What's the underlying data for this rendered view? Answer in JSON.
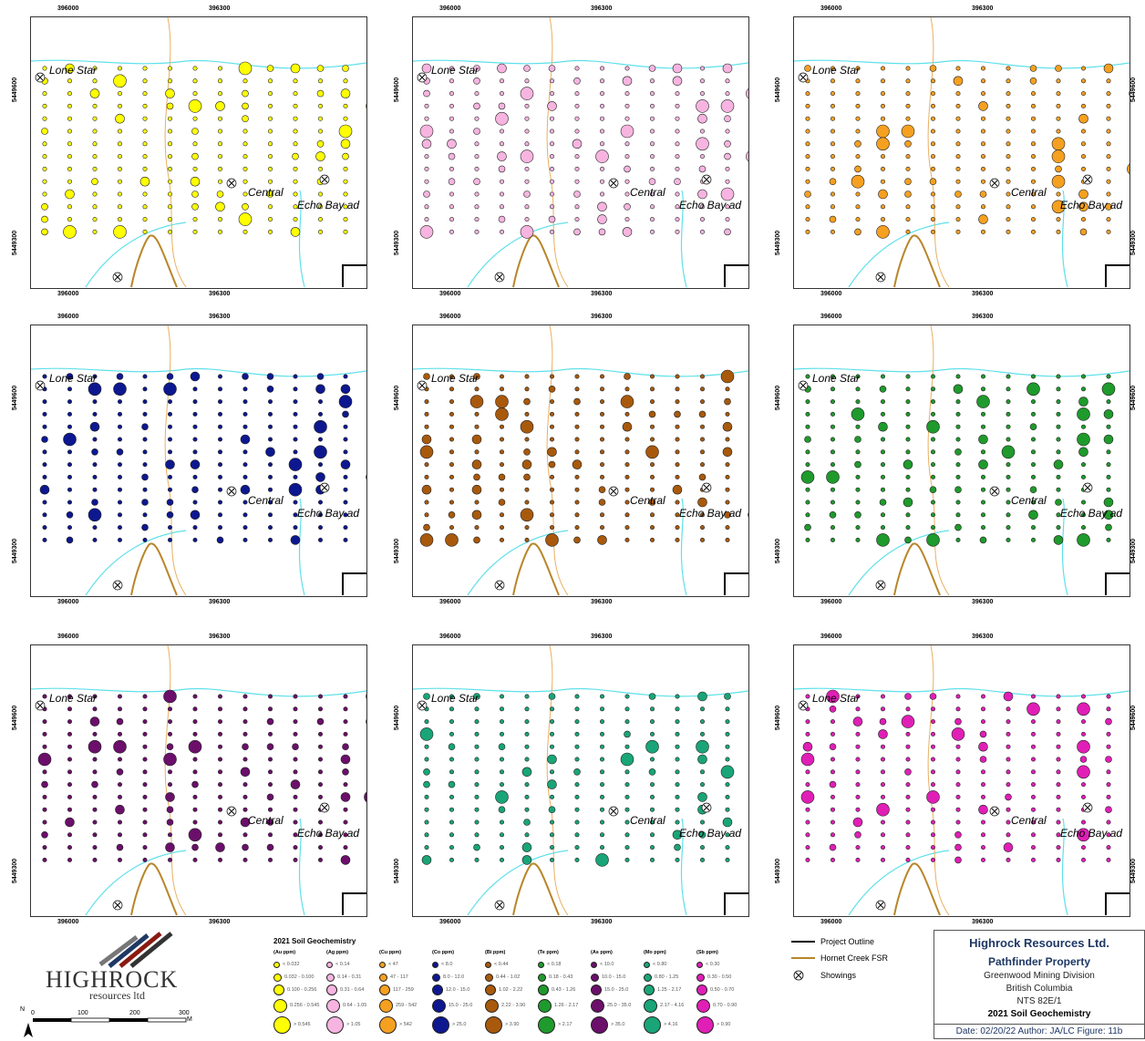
{
  "panels": [
    {
      "element": "Au",
      "title": "Au (ppm)",
      "color": "#ffff00",
      "dark": false
    },
    {
      "element": "Ag",
      "title": "Ag (ppm)",
      "color": "#f7b4e0",
      "dark": false
    },
    {
      "element": "Cu",
      "title": "Cu (ppm)",
      "color": "#f5a020",
      "dark": false
    },
    {
      "element": "Co",
      "title": "Co (ppm)",
      "color": "#0d1890",
      "dark": true
    },
    {
      "element": "Bi",
      "title": "Bi (ppm)",
      "color": "#a8590c",
      "dark": true
    },
    {
      "element": "Te",
      "title": "Te (ppm)",
      "color": "#1f9a2c",
      "dark": true
    },
    {
      "element": "As",
      "title": "As (ppm)",
      "color": "#6b0f6b",
      "dark": true
    },
    {
      "element": "Mo",
      "title": "Mo (ppm)",
      "color": "#19a577",
      "dark": true
    },
    {
      "element": "Sb",
      "title": "Sb (ppm)",
      "color": "#e01fb6",
      "dark": true
    }
  ],
  "map_labels": {
    "x_tick_1": "396000",
    "x_tick_2": "396300",
    "y_tick_top": "5449600",
    "y_tick_bottom": "5449300",
    "place_lone_star": "Lone Star",
    "place_central": "Central",
    "place_echo_bay": "Echo Bay ad"
  },
  "legend": {
    "title": "2021 Soil Geochemistry",
    "columns": [
      {
        "head": "(Au ppm)",
        "color": "#ffff00",
        "ranges": [
          "< 0.032",
          "0.032 - 0.100",
          "0.100 - 0.256",
          "0.256 - 0.545",
          "> 0.545"
        ]
      },
      {
        "head": "(Ag ppm)",
        "color": "#f7b4e0",
        "ranges": [
          "< 0.14",
          "0.14 - 0.31",
          "0.31 - 0.64",
          "0.64 - 1.05",
          "> 1.05"
        ]
      },
      {
        "head": "(Cu ppm)",
        "color": "#f5a020",
        "ranges": [
          "< 47",
          "47 - 117",
          "117 - 259",
          "259 - 542",
          "> 542"
        ]
      },
      {
        "head": "(Co ppm)",
        "color": "#0d1890",
        "ranges": [
          "< 8.0",
          "8.0 - 12.0",
          "12.0 - 15.0",
          "15.0 - 25.0",
          "> 25.0"
        ]
      },
      {
        "head": "(Bi ppm)",
        "color": "#a8590c",
        "ranges": [
          "< 0.44",
          "0.44 - 1.02",
          "1.02 - 2.22",
          "2.22 - 3.90",
          "> 3.90"
        ]
      },
      {
        "head": "(Te ppm)",
        "color": "#1f9a2c",
        "ranges": [
          "< 0.18",
          "0.18 - 0.43",
          "0.43 - 1.26",
          "1.26 - 2.17",
          "> 2.17"
        ]
      },
      {
        "head": "(As ppm)",
        "color": "#6b0f6b",
        "ranges": [
          "< 10.0",
          "10.0 - 15.0",
          "15.0 - 25.0",
          "25.0 - 35.0",
          "> 35.0"
        ]
      },
      {
        "head": "(Mo ppm)",
        "color": "#19a577",
        "ranges": [
          "< 0.80",
          "0.80 - 1.25",
          "1.25 - 2.17",
          "2.17 - 4.16",
          "> 4.16"
        ]
      },
      {
        "head": "(Sb ppm)",
        "color": "#e01fb6",
        "ranges": [
          "< 0.30",
          "0.30 - 0.50",
          "0.50 - 0.70",
          "0.70 - 0.90",
          "> 0.90"
        ]
      }
    ]
  },
  "keys": {
    "project_outline": "Project Outline",
    "hornet_creek": "Hornet Creek FSR",
    "showings": "Showings"
  },
  "logo": {
    "name": "HIGHROCK",
    "sub": "resources ltd"
  },
  "scale": {
    "north": "N",
    "ticks": [
      "0",
      "100",
      "200",
      "300"
    ],
    "unit": "M"
  },
  "title_block": {
    "company": "Highrock Resources Ltd.",
    "property": "Pathfinder Property",
    "division": "Greenwood Mining Division",
    "province": "British Columbia",
    "nts": "NTS 82E/1",
    "figure_title": "2021 Soil Geochemistry",
    "footer": "Date: 02/20/22   Author: JA/LC   Figure: 11b"
  },
  "colors": {
    "river": "#5fe0ea",
    "road": "#b8862a",
    "creek_trail": "#e8b060"
  }
}
